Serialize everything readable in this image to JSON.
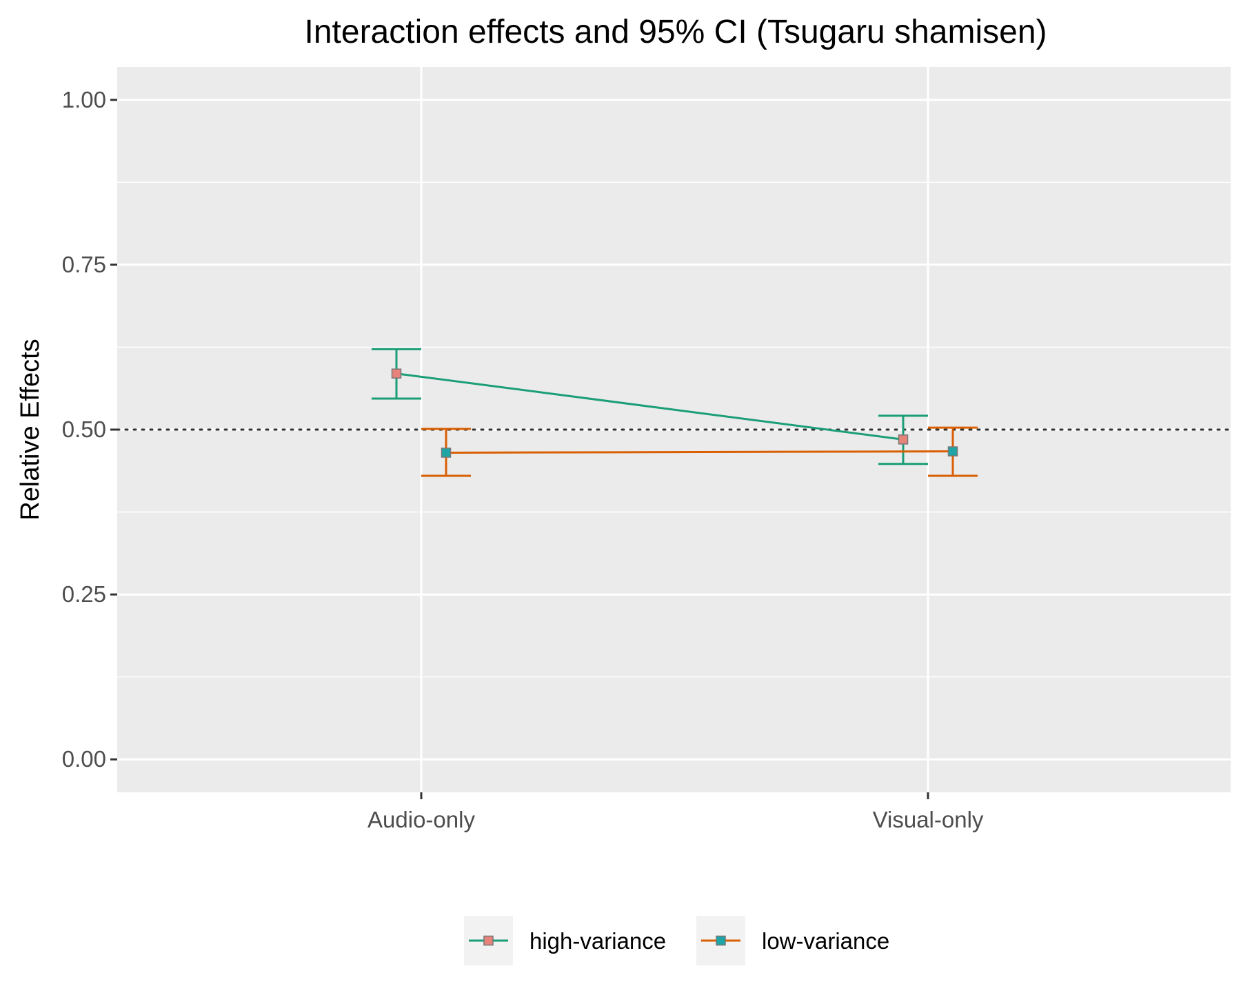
{
  "chart_data": {
    "type": "line",
    "title": "Interaction effects and 95% CI (Tsugaru shamisen)",
    "xlabel": "",
    "ylabel": "Relative Effects",
    "categories": [
      "Audio-only",
      "Visual-only"
    ],
    "ylim": [
      -0.05,
      1.05
    ],
    "yticks": [
      0.0,
      0.25,
      0.5,
      0.75,
      1.0
    ],
    "ytick_labels": [
      "0.00",
      "0.25",
      "0.50",
      "0.75",
      "1.00"
    ],
    "reference_line": 0.5,
    "grid": true,
    "legend_position": "bottom",
    "series": [
      {
        "name": "high-variance",
        "color": "#1b9e77",
        "marker_fill": "#e7837a",
        "values": [
          0.585,
          0.485
        ],
        "ci_lower": [
          0.547,
          0.448
        ],
        "ci_upper": [
          0.622,
          0.521
        ]
      },
      {
        "name": "low-variance",
        "color": "#d95f02",
        "marker_fill": "#1fa5a5",
        "values": [
          0.465,
          0.467
        ],
        "ci_lower": [
          0.43,
          0.43
        ],
        "ci_upper": [
          0.501,
          0.503
        ]
      }
    ]
  }
}
